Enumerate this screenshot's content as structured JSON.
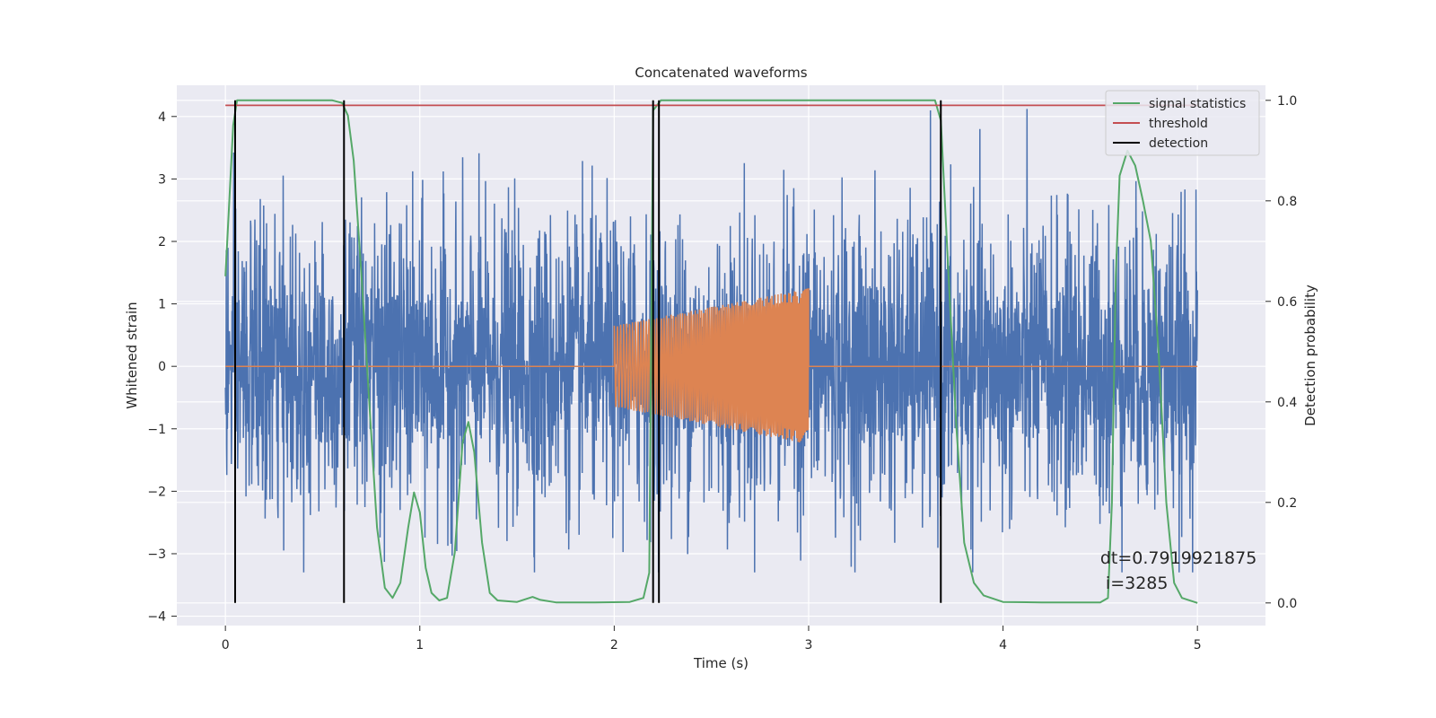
{
  "chart_data": {
    "type": "line",
    "title": "Concatenated waveforms",
    "xlabel": "Time (s)",
    "ylabel": "Whitened strain",
    "y2label": "Detection probability",
    "xlim": [
      -0.25,
      5.35
    ],
    "ylim": [
      -4.15,
      4.5
    ],
    "y2lim": [
      -0.045,
      1.03
    ],
    "xticks": [
      "0",
      "1",
      "2",
      "3",
      "4",
      "5"
    ],
    "yticks": [
      "4",
      "3",
      "2",
      "1",
      "0",
      "−1",
      "−2",
      "−3",
      "−4"
    ],
    "y2ticks": [
      "1.0",
      "0.8",
      "0.6",
      "0.4",
      "0.2",
      "0.0"
    ],
    "grid": true,
    "legend_position": "top-right",
    "colors": {
      "background": "#eaeaf2",
      "noise": "#4c72b0",
      "chirp": "#dd8452",
      "signal_statistics": "#55a868",
      "threshold": "#c44e52",
      "detection": "#000000"
    },
    "series": [
      {
        "name": "",
        "role": "noisy-strain",
        "x_range": [
          0,
          5
        ]
      },
      {
        "name": "",
        "role": "injected-chirp",
        "x_range": [
          2,
          3
        ],
        "amplitude_start": 0.65,
        "amplitude_end": 1.25
      },
      {
        "name": "signal statistics",
        "axis": "right",
        "x": [
          0.0,
          0.02,
          0.04,
          0.06,
          0.1,
          0.3,
          0.55,
          0.6,
          0.63,
          0.66,
          0.7,
          0.74,
          0.78,
          0.82,
          0.86,
          0.9,
          0.94,
          0.97,
          1.0,
          1.03,
          1.06,
          1.1,
          1.14,
          1.18,
          1.22,
          1.25,
          1.28,
          1.32,
          1.36,
          1.4,
          1.5,
          1.58,
          1.62,
          1.7,
          1.9,
          2.08,
          2.15,
          2.18,
          2.2,
          2.24,
          2.4,
          3.0,
          3.65,
          3.68,
          3.72,
          3.76,
          3.8,
          3.85,
          3.9,
          4.0,
          4.2,
          4.5,
          4.54,
          4.56,
          4.58,
          4.6,
          4.64,
          4.68,
          4.72,
          4.76,
          4.8,
          4.84,
          4.88,
          4.92,
          5.0
        ],
        "values": [
          0.65,
          0.8,
          0.95,
          1.0,
          1.0,
          1.0,
          1.0,
          0.995,
          0.97,
          0.88,
          0.65,
          0.4,
          0.15,
          0.03,
          0.01,
          0.04,
          0.15,
          0.22,
          0.18,
          0.07,
          0.02,
          0.005,
          0.01,
          0.1,
          0.32,
          0.36,
          0.3,
          0.12,
          0.02,
          0.005,
          0.002,
          0.012,
          0.006,
          0.001,
          0.001,
          0.002,
          0.01,
          0.06,
          0.98,
          1.0,
          1.0,
          1.0,
          1.0,
          0.96,
          0.65,
          0.35,
          0.12,
          0.04,
          0.015,
          0.002,
          0.001,
          0.001,
          0.01,
          0.2,
          0.65,
          0.85,
          0.9,
          0.87,
          0.8,
          0.72,
          0.5,
          0.2,
          0.04,
          0.01,
          0.0
        ]
      },
      {
        "name": "threshold",
        "axis": "right",
        "x": [
          0,
          5
        ],
        "values": [
          0.99,
          0.99
        ]
      },
      {
        "name": "detection",
        "axis": "right",
        "x": [
          0.05,
          0.61,
          2.2,
          2.23,
          3.68
        ],
        "range": [
          0,
          1
        ]
      }
    ],
    "annotation": {
      "line1": "dt=0.7919921875",
      "line2": " i=3285",
      "x": 4.5,
      "y": -3.3
    }
  }
}
